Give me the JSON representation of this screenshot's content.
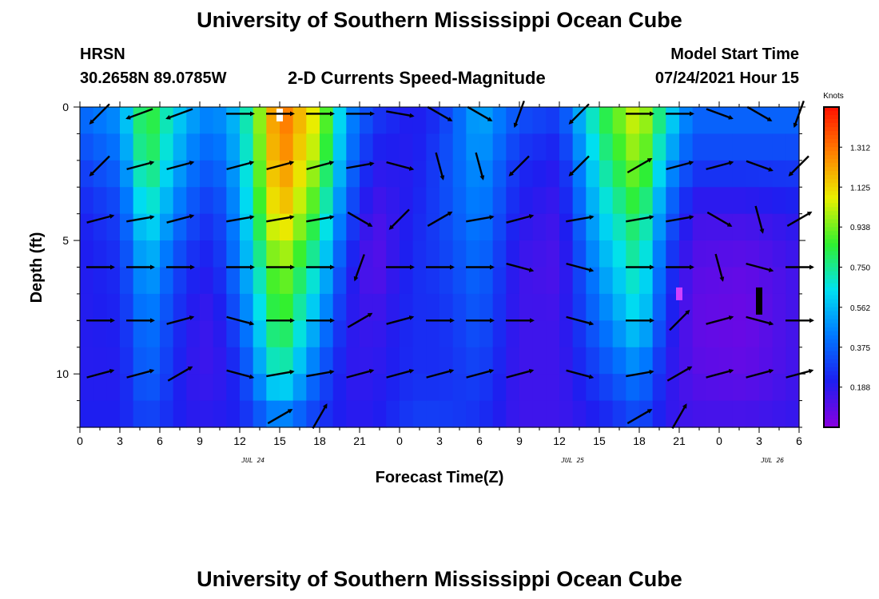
{
  "page": {
    "title_top": "University of Southern Mississippi Ocean Cube",
    "title_bottom": "University of Southern Mississippi Ocean Cube",
    "station": "HRSN",
    "location": "30.2658N  89.0785W",
    "subtitle": "2-D Currents Speed-Magnitude",
    "model_start_label": "Model Start Time",
    "model_start_value": "07/24/2021 Hour 15"
  },
  "chart_data": {
    "type": "heatmap",
    "title": "2-D Currents Speed-Magnitude",
    "xlabel": "Forecast Time(Z)",
    "ylabel": "Depth (ft)",
    "x_unit": "hours since 07/24 00Z",
    "xlim": [
      0,
      54
    ],
    "ylim": [
      0,
      12
    ],
    "x_ticks": [
      0,
      3,
      6,
      9,
      12,
      15,
      18,
      21,
      24,
      27,
      30,
      33,
      36,
      39,
      42,
      45,
      48,
      51,
      54
    ],
    "x_tick_labels": [
      "0",
      "3",
      "6",
      "9",
      "12",
      "15",
      "18",
      "21",
      "0",
      "3",
      "6",
      "9",
      "12",
      "15",
      "18",
      "21",
      "0",
      "3",
      "6"
    ],
    "y_ticks": [
      0,
      5,
      10
    ],
    "y_tick_labels": [
      "0",
      "5",
      "10"
    ],
    "date_labels": [
      {
        "x": 13,
        "label": "JUL 24"
      },
      {
        "x": 37,
        "label": "JUL 25"
      },
      {
        "x": 52,
        "label": "JUL 26"
      }
    ],
    "colorbar": {
      "title": "Knots",
      "ticks": [
        0.188,
        0.375,
        0.562,
        0.75,
        0.938,
        1.125,
        1.312
      ],
      "tick_labels": [
        "0.188",
        "0.375",
        "0.562",
        "0.750",
        "0.938",
        "1.125",
        "1.312"
      ],
      "range": [
        0.0,
        1.5
      ],
      "colors": [
        "#8a00e0",
        "#1e1ef0",
        "#0078ff",
        "#00e0f0",
        "#30f030",
        "#e8f000",
        "#ff8000",
        "#ff1000"
      ]
    },
    "depth_levels": [
      0,
      2,
      4,
      6,
      8,
      10,
      12
    ],
    "speed_keyframes": [
      {
        "t": 0,
        "speeds": [
          0.4,
          0.3,
          0.22,
          0.2,
          0.2,
          0.2,
          0.22
        ]
      },
      {
        "t": 3,
        "speeds": [
          0.5,
          0.4,
          0.3,
          0.25,
          0.22,
          0.2,
          0.22
        ]
      },
      {
        "t": 5,
        "speeds": [
          0.9,
          0.85,
          0.7,
          0.55,
          0.45,
          0.4,
          0.3
        ]
      },
      {
        "t": 8,
        "speeds": [
          0.55,
          0.45,
          0.35,
          0.25,
          0.2,
          0.18,
          0.2
        ]
      },
      {
        "t": 10,
        "speeds": [
          0.45,
          0.35,
          0.25,
          0.2,
          0.15,
          0.15,
          0.2
        ]
      },
      {
        "t": 12,
        "speeds": [
          0.6,
          0.55,
          0.5,
          0.45,
          0.35,
          0.25,
          0.22
        ]
      },
      {
        "t": 15,
        "speeds": [
          1.35,
          1.3,
          1.2,
          1.0,
          0.9,
          0.75,
          0.4
        ]
      },
      {
        "t": 18,
        "speeds": [
          1.05,
          0.95,
          0.8,
          0.65,
          0.5,
          0.35,
          0.25
        ]
      },
      {
        "t": 20,
        "speeds": [
          0.5,
          0.45,
          0.35,
          0.25,
          0.2,
          0.18,
          0.2
        ]
      },
      {
        "t": 22,
        "speeds": [
          0.3,
          0.2,
          0.12,
          0.08,
          0.15,
          0.18,
          0.2
        ]
      },
      {
        "t": 25,
        "speeds": [
          0.2,
          0.2,
          0.22,
          0.25,
          0.25,
          0.25,
          0.3
        ]
      },
      {
        "t": 27,
        "speeds": [
          0.25,
          0.3,
          0.3,
          0.28,
          0.25,
          0.25,
          0.3
        ]
      },
      {
        "t": 30,
        "speeds": [
          0.55,
          0.5,
          0.45,
          0.4,
          0.35,
          0.3,
          0.25
        ]
      },
      {
        "t": 33,
        "speeds": [
          0.35,
          0.25,
          0.2,
          0.15,
          0.15,
          0.15,
          0.15
        ]
      },
      {
        "t": 36,
        "speeds": [
          0.3,
          0.2,
          0.15,
          0.12,
          0.15,
          0.15,
          0.15
        ]
      },
      {
        "t": 39,
        "speeds": [
          0.8,
          0.7,
          0.6,
          0.5,
          0.4,
          0.3,
          0.2
        ]
      },
      {
        "t": 42,
        "speeds": [
          1.1,
          1.0,
          0.85,
          0.75,
          0.65,
          0.45,
          0.3
        ]
      },
      {
        "t": 44,
        "speeds": [
          0.7,
          0.55,
          0.4,
          0.3,
          0.25,
          0.2,
          0.18
        ]
      },
      {
        "t": 46,
        "speeds": [
          0.4,
          0.3,
          0.15,
          0.1,
          0.08,
          0.1,
          0.15
        ]
      },
      {
        "t": 50,
        "speeds": [
          0.4,
          0.3,
          0.15,
          0.08,
          0.06,
          0.08,
          0.15
        ]
      },
      {
        "t": 54,
        "speeds": [
          0.4,
          0.3,
          0.2,
          0.15,
          0.15,
          0.15,
          0.18
        ]
      }
    ],
    "vector_times": [
      1.5,
      4.5,
      7.5,
      12,
      15,
      18,
      21,
      24,
      27,
      30,
      33,
      37.5,
      42,
      45,
      48,
      51,
      54
    ],
    "vector_depths": [
      0.25,
      2.2,
      4.2,
      6,
      8,
      10,
      11.6
    ],
    "vector_directions_deg": [
      [
        225,
        200,
        200,
        0,
        0,
        0,
        0,
        350,
        330,
        330,
        250,
        225,
        0,
        0,
        340,
        330,
        250
      ],
      [
        225,
        15,
        15,
        15,
        15,
        15,
        10,
        345,
        285,
        285,
        225,
        225,
        30,
        15,
        15,
        340,
        225
      ],
      [
        15,
        10,
        15,
        10,
        10,
        10,
        330,
        225,
        30,
        10,
        15,
        10,
        10,
        10,
        330,
        285,
        30
      ],
      [
        0,
        0,
        0,
        0,
        0,
        0,
        250,
        0,
        0,
        0,
        345,
        345,
        0,
        0,
        285,
        345,
        0
      ],
      [
        0,
        0,
        15,
        345,
        0,
        0,
        30,
        15,
        0,
        0,
        0,
        345,
        0,
        45,
        15,
        345,
        0
      ],
      [
        15,
        15,
        30,
        345,
        10,
        10,
        15,
        15,
        15,
        15,
        15,
        345,
        10,
        30,
        15,
        15,
        15
      ],
      [
        null,
        null,
        null,
        null,
        30,
        60,
        null,
        null,
        null,
        null,
        null,
        null,
        30,
        60,
        null,
        null,
        null
      ]
    ],
    "anomaly_marks": [
      {
        "t": 15,
        "depth": 0.3,
        "color": "#ffffff"
      },
      {
        "t": 51,
        "depth": 7,
        "color": "#000000"
      },
      {
        "t": 45,
        "depth": 7,
        "color": "#d040ff"
      }
    ]
  }
}
